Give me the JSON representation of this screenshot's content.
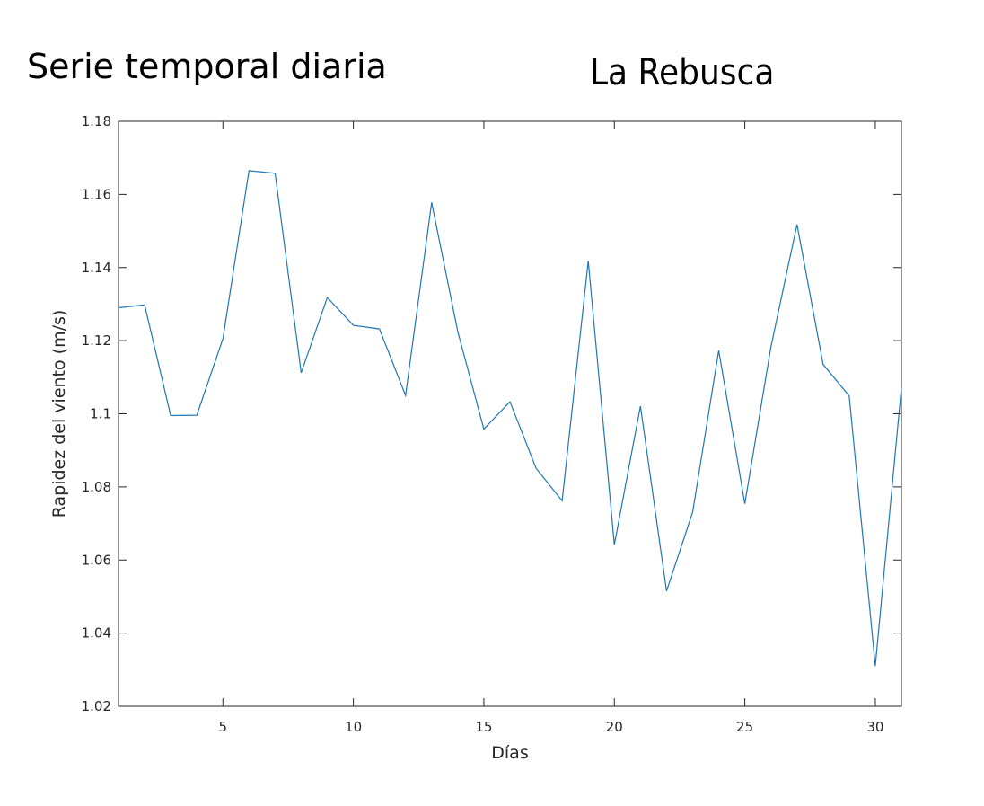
{
  "header": {
    "left_title": "Serie temporal diaria",
    "right_title": "La Rebusca"
  },
  "chart_data": {
    "type": "line",
    "xlabel": "Días",
    "ylabel": "Rapidez del viento (m/s)",
    "xlim": [
      1,
      31
    ],
    "ylim": [
      1.02,
      1.18
    ],
    "xticks": [
      5,
      10,
      15,
      20,
      25,
      30
    ],
    "yticks": [
      1.02,
      1.04,
      1.06,
      1.08,
      1.1,
      1.12,
      1.14,
      1.16,
      1.18
    ],
    "ytick_labels": [
      "1.02",
      "1.04",
      "1.06",
      "1.08",
      "1.1",
      "1.12",
      "1.14",
      "1.16",
      "1.18"
    ],
    "grid": false,
    "line_color": "#1f77b4",
    "axis_color": "#262626",
    "series": [
      {
        "x": [
          1,
          2,
          3,
          4,
          5,
          6,
          7,
          8,
          9,
          10,
          11,
          12,
          13,
          14,
          15,
          16,
          17,
          18,
          19,
          20,
          21,
          22,
          23,
          24,
          25,
          26,
          27,
          28,
          29,
          30,
          31
        ],
        "values": [
          1.129,
          1.1298,
          1.0995,
          1.0996,
          1.1205,
          1.1665,
          1.1658,
          1.1112,
          1.1318,
          1.1242,
          1.1232,
          1.105,
          1.1578,
          1.1225,
          1.0958,
          1.1033,
          1.0851,
          1.0762,
          1.1418,
          1.0642,
          1.1021,
          1.0515,
          1.0731,
          1.1173,
          1.0754,
          1.1183,
          1.1518,
          1.1135,
          1.1049,
          1.031,
          1.1072
        ]
      }
    ]
  }
}
